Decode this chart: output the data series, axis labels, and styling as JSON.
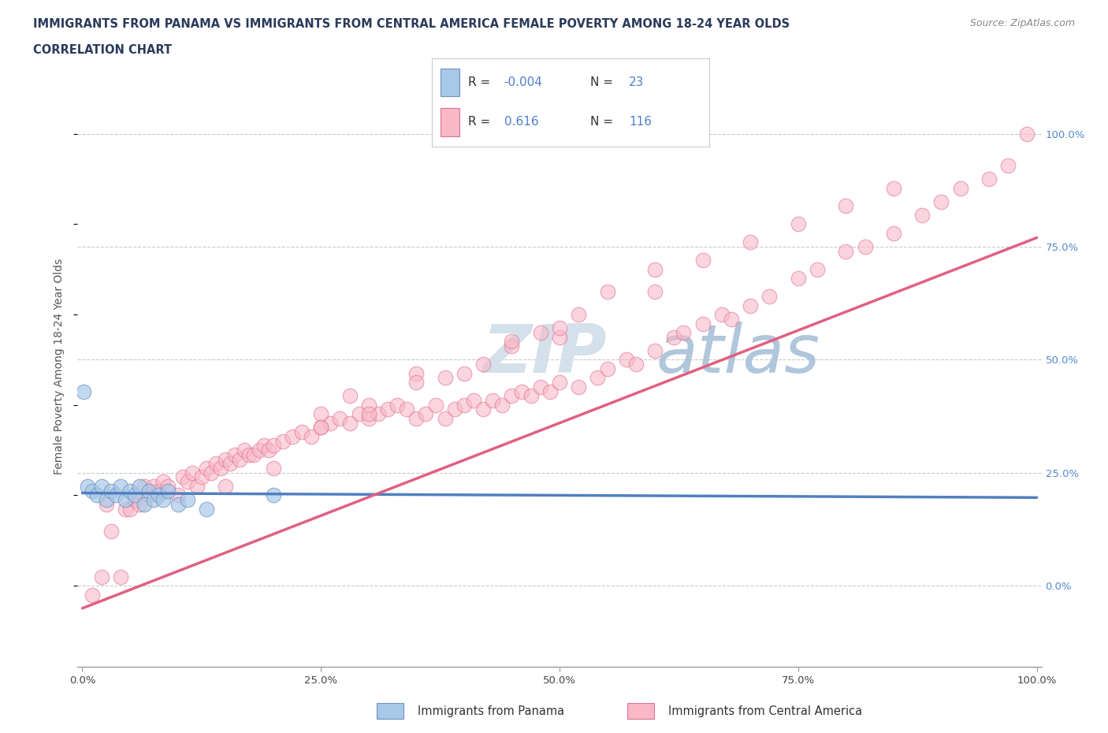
{
  "title_line1": "IMMIGRANTS FROM PANAMA VS IMMIGRANTS FROM CENTRAL AMERICA FEMALE POVERTY AMONG 18-24 YEAR OLDS",
  "title_line2": "CORRELATION CHART",
  "source": "Source: ZipAtlas.com",
  "ylabel": "Female Poverty Among 18-24 Year Olds",
  "xlim": [
    -0.005,
    1.005
  ],
  "ylim": [
    -0.18,
    1.15
  ],
  "xtick_positions": [
    0.0,
    0.25,
    0.5,
    0.75,
    1.0
  ],
  "xticklabels": [
    "0.0%",
    "25.0%",
    "50.0%",
    "75.0%",
    "100.0%"
  ],
  "ytick_positions": [
    0.0,
    0.25,
    0.5,
    0.75,
    1.0
  ],
  "ytick_labels_right": [
    "0.0%",
    "25.0%",
    "50.0%",
    "75.0%",
    "100.0%"
  ],
  "panama_fill_color": "#a8c8e8",
  "panama_edge_color": "#7090c0",
  "central_fill_color": "#f8b8c8",
  "central_edge_color": "#e07090",
  "panama_line_color": "#5080c0",
  "central_line_color": "#e06080",
  "panama_line_dash": [
    6,
    4
  ],
  "background_color": "#ffffff",
  "watermark_zip": "ZIP",
  "watermark_atlas": "atlas",
  "legend_R_panama": "-0.004",
  "legend_N_panama": "23",
  "legend_R_central": "0.616",
  "legend_N_central": "116",
  "panama_scatter_x": [
    0.001,
    0.005,
    0.01,
    0.015,
    0.02,
    0.025,
    0.03,
    0.035,
    0.04,
    0.045,
    0.05,
    0.055,
    0.06,
    0.065,
    0.07,
    0.075,
    0.08,
    0.085,
    0.09,
    0.1,
    0.11,
    0.13,
    0.2
  ],
  "panama_scatter_y": [
    0.43,
    0.22,
    0.21,
    0.2,
    0.22,
    0.19,
    0.21,
    0.2,
    0.22,
    0.19,
    0.21,
    0.2,
    0.22,
    0.18,
    0.21,
    0.19,
    0.2,
    0.19,
    0.21,
    0.18,
    0.19,
    0.17,
    0.2
  ],
  "panama_line_x0": 0.0,
  "panama_line_x1": 1.0,
  "panama_line_y0": 0.205,
  "panama_line_y1": 0.195,
  "central_line_x0": 0.0,
  "central_line_x1": 1.0,
  "central_line_y0": -0.05,
  "central_line_y1": 0.77,
  "central_scatter_x": [
    0.01,
    0.02,
    0.025,
    0.03,
    0.04,
    0.045,
    0.05,
    0.055,
    0.06,
    0.065,
    0.07,
    0.075,
    0.08,
    0.085,
    0.09,
    0.1,
    0.105,
    0.11,
    0.115,
    0.12,
    0.125,
    0.13,
    0.135,
    0.14,
    0.145,
    0.15,
    0.155,
    0.16,
    0.165,
    0.17,
    0.175,
    0.18,
    0.185,
    0.19,
    0.195,
    0.2,
    0.21,
    0.22,
    0.23,
    0.24,
    0.25,
    0.26,
    0.27,
    0.28,
    0.29,
    0.3,
    0.31,
    0.32,
    0.33,
    0.34,
    0.35,
    0.36,
    0.37,
    0.38,
    0.39,
    0.4,
    0.41,
    0.42,
    0.43,
    0.44,
    0.45,
    0.46,
    0.47,
    0.48,
    0.49,
    0.5,
    0.52,
    0.54,
    0.55,
    0.57,
    0.58,
    0.6,
    0.62,
    0.63,
    0.65,
    0.67,
    0.68,
    0.7,
    0.72,
    0.75,
    0.77,
    0.8,
    0.82,
    0.85,
    0.88,
    0.9,
    0.92,
    0.95,
    0.97,
    0.99,
    0.35,
    0.4,
    0.25,
    0.3,
    0.45,
    0.5,
    0.55,
    0.6,
    0.2,
    0.15,
    0.42,
    0.38,
    0.48,
    0.52,
    0.28,
    0.35,
    0.3,
    0.45,
    0.25,
    0.5,
    0.6,
    0.65,
    0.7,
    0.75,
    0.8,
    0.85
  ],
  "central_scatter_y": [
    -0.02,
    0.02,
    0.18,
    0.12,
    0.02,
    0.17,
    0.17,
    0.19,
    0.18,
    0.22,
    0.2,
    0.22,
    0.21,
    0.23,
    0.22,
    0.2,
    0.24,
    0.23,
    0.25,
    0.22,
    0.24,
    0.26,
    0.25,
    0.27,
    0.26,
    0.28,
    0.27,
    0.29,
    0.28,
    0.3,
    0.29,
    0.29,
    0.3,
    0.31,
    0.3,
    0.31,
    0.32,
    0.33,
    0.34,
    0.33,
    0.35,
    0.36,
    0.37,
    0.36,
    0.38,
    0.37,
    0.38,
    0.39,
    0.4,
    0.39,
    0.37,
    0.38,
    0.4,
    0.37,
    0.39,
    0.4,
    0.41,
    0.39,
    0.41,
    0.4,
    0.42,
    0.43,
    0.42,
    0.44,
    0.43,
    0.45,
    0.44,
    0.46,
    0.48,
    0.5,
    0.49,
    0.52,
    0.55,
    0.56,
    0.58,
    0.6,
    0.59,
    0.62,
    0.64,
    0.68,
    0.7,
    0.74,
    0.75,
    0.78,
    0.82,
    0.85,
    0.88,
    0.9,
    0.93,
    1.0,
    0.47,
    0.47,
    0.38,
    0.4,
    0.53,
    0.55,
    0.65,
    0.65,
    0.26,
    0.22,
    0.49,
    0.46,
    0.56,
    0.6,
    0.42,
    0.45,
    0.38,
    0.54,
    0.35,
    0.57,
    0.7,
    0.72,
    0.76,
    0.8,
    0.84,
    0.88
  ]
}
